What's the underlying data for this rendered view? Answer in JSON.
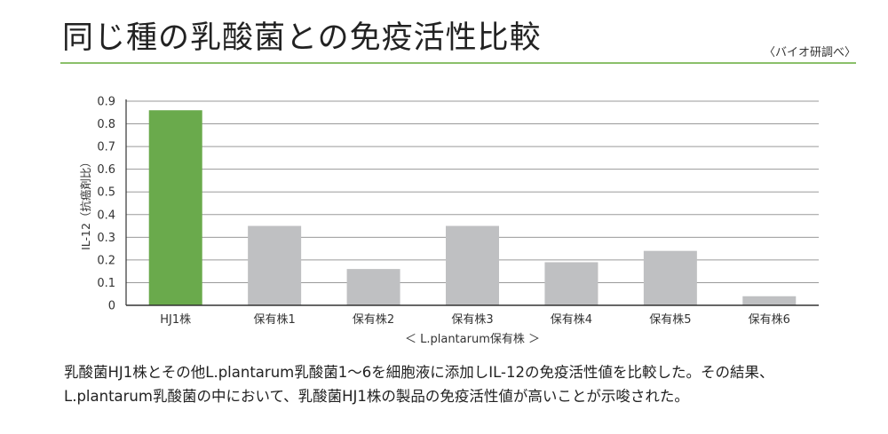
{
  "header": {
    "title": "同じ種の乳酸菌との免疫活性比較",
    "source": "〈バイオ研調べ〉"
  },
  "chart_data": {
    "type": "bar",
    "categories": [
      "HJ1株",
      "保有株1",
      "保有株2",
      "保有株3",
      "保有株4",
      "保有株5",
      "保有株6"
    ],
    "values": [
      0.86,
      0.35,
      0.16,
      0.35,
      0.19,
      0.24,
      0.04
    ],
    "ylabel": "IL-12（抗癌剤比）",
    "xlabel": "＜ L.plantarum保有株 ＞",
    "ylim": [
      0,
      0.9
    ],
    "yticks": [
      "0",
      "0.1",
      "0.2",
      "0.3",
      "0.4",
      "0.5",
      "0.6",
      "0.7",
      "0.8",
      "0.9"
    ],
    "grid": true,
    "colors": {
      "highlight": "#6aaa4c",
      "default": "#bfc0c2"
    }
  },
  "caption": {
    "line1": "乳酸菌HJ1株とその他L.plantarum乳酸菌1〜6を細胞液に添加しIL-12の免疫活性値を比較した。その結果、",
    "line2": "L.plantarum乳酸菌の中において、乳酸菌HJ1株の製品の免疫活性値が高いことが示唆された。"
  }
}
